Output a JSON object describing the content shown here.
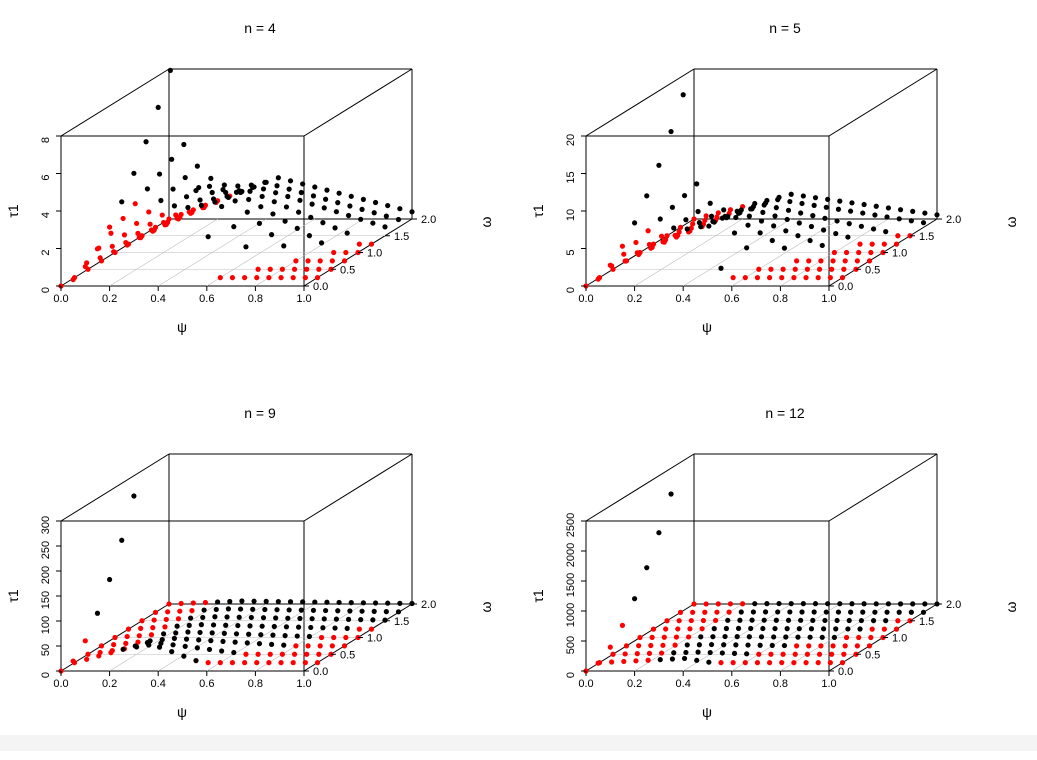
{
  "colors": {
    "high": "#000000",
    "low": "#ff0000",
    "box": "#000000",
    "grid": "#bebebe"
  },
  "chart_data": [
    {
      "type": "scatter",
      "title": "n =  4",
      "xlabel": "ψ",
      "ylabel": "ω",
      "zlabel": "τ1",
      "xlim": [
        0,
        1
      ],
      "ylim": [
        0,
        2
      ],
      "zlim": [
        0,
        8
      ],
      "x_ticks": [
        "0.0",
        "0.2",
        "0.4",
        "0.6",
        "0.8",
        "1.0"
      ],
      "y_ticks": [
        "0.0",
        "0.5",
        "1.0",
        "1.5",
        "2.0"
      ],
      "z_ticks": [
        "0",
        "2",
        "4",
        "6",
        "8"
      ],
      "zmax": 11.5,
      "series_by_omega": [
        {
          "omega": 0.0,
          "peak": 11.5
        },
        {
          "omega": 0.25,
          "peak": 7.1
        },
        {
          "omega": 0.5,
          "peak": 5.5
        },
        {
          "omega": 0.75,
          "peak": 4.4
        },
        {
          "omega": 1.0,
          "peak": 3.6
        },
        {
          "omega": 1.25,
          "peak": 3.1
        },
        {
          "omega": 1.5,
          "peak": 2.7
        },
        {
          "omega": 1.75,
          "peak": 2.4
        },
        {
          "omega": 2.0,
          "peak": 2.2
        }
      ],
      "red_x_max": 0.45,
      "cuts": [
        0.45,
        0.58,
        0.68,
        0.78,
        0.87,
        0.95,
        1.05,
        1.05,
        1.05
      ]
    },
    {
      "type": "scatter",
      "title": "n =  5",
      "xlabel": "ψ",
      "ylabel": "ω",
      "zlabel": "τ1",
      "xlim": [
        0,
        1
      ],
      "ylim": [
        0,
        2
      ],
      "zlim": [
        0,
        20
      ],
      "x_ticks": [
        "0.0",
        "0.2",
        "0.4",
        "0.6",
        "0.8",
        "1.0"
      ],
      "y_ticks": [
        "0.0",
        "0.5",
        "1.0",
        "1.5",
        "2.0"
      ],
      "z_ticks": [
        "0",
        "5",
        "10",
        "15",
        "20"
      ],
      "zmax": 25.5,
      "series_by_omega": [
        {
          "omega": 0.0,
          "peak": 25.5
        },
        {
          "omega": 0.25,
          "peak": 12.5
        },
        {
          "omega": 0.5,
          "peak": 8.8
        },
        {
          "omega": 0.75,
          "peak": 6.8
        },
        {
          "omega": 1.0,
          "peak": 5.5
        },
        {
          "omega": 1.25,
          "peak": 4.7
        },
        {
          "omega": 1.5,
          "peak": 4.1
        },
        {
          "omega": 1.75,
          "peak": 3.7
        },
        {
          "omega": 2.0,
          "peak": 3.3
        }
      ],
      "red_x_max": 0.4,
      "cuts": [
        0.4,
        0.5,
        0.6,
        0.7,
        0.78,
        0.85,
        0.92,
        1.05,
        1.05
      ]
    },
    {
      "type": "scatter",
      "title": "n =  9",
      "xlabel": "ψ",
      "ylabel": "ω",
      "zlabel": "τ1",
      "xlim": [
        0,
        1
      ],
      "ylim": [
        0,
        2
      ],
      "zlim": [
        0,
        300
      ],
      "x_ticks": [
        "0.0",
        "0.2",
        "0.4",
        "0.6",
        "0.8",
        "1.0"
      ],
      "y_ticks": [
        "0.0",
        "0.5",
        "1.0",
        "1.5",
        "2.0"
      ],
      "z_ticks": [
        "0",
        "50",
        "100",
        "150",
        "200",
        "250",
        "300"
      ],
      "zmax": 350,
      "series_by_omega": [
        {
          "omega": 0.0,
          "peak": 350
        },
        {
          "omega": 0.25,
          "peak": 40
        },
        {
          "omega": 0.5,
          "peak": 22
        },
        {
          "omega": 0.75,
          "peak": 15
        },
        {
          "omega": 1.0,
          "peak": 11
        },
        {
          "omega": 1.25,
          "peak": 9
        },
        {
          "omega": 1.5,
          "peak": 8
        },
        {
          "omega": 1.75,
          "peak": 7
        },
        {
          "omega": 2.0,
          "peak": 6
        }
      ],
      "red_x_max": 0.3,
      "cuts": [
        0.3,
        0.5,
        0.62,
        0.75,
        0.85,
        0.95,
        1.05,
        1.05,
        1.05
      ]
    },
    {
      "type": "scatter",
      "title": "n =  12",
      "xlabel": "ψ",
      "ylabel": "ω",
      "zlabel": "τ1",
      "xlim": [
        0,
        1
      ],
      "ylim": [
        0,
        2
      ],
      "zlim": [
        0,
        2500
      ],
      "x_ticks": [
        "0.0",
        "0.2",
        "0.4",
        "0.6",
        "0.8",
        "1.0"
      ],
      "y_ticks": [
        "0.0",
        "0.5",
        "1.0",
        "1.5",
        "2.0"
      ],
      "z_ticks": [
        "0",
        "500",
        "1000",
        "1500",
        "2000",
        "2500"
      ],
      "zmax": 2950,
      "series_by_omega": [
        {
          "omega": 0.0,
          "peak": 2950
        },
        {
          "omega": 0.25,
          "peak": 70
        },
        {
          "omega": 0.5,
          "peak": 35
        },
        {
          "omega": 0.75,
          "peak": 22
        },
        {
          "omega": 1.0,
          "peak": 16
        },
        {
          "omega": 1.25,
          "peak": 12
        },
        {
          "omega": 1.5,
          "peak": 10
        },
        {
          "omega": 1.75,
          "peak": 8
        },
        {
          "omega": 2.0,
          "peak": 7
        }
      ],
      "red_x_max": 0.35,
      "cuts": [
        0.35,
        0.45,
        0.58,
        0.7,
        0.8,
        0.88,
        0.95,
        1.05,
        1.05
      ]
    }
  ]
}
